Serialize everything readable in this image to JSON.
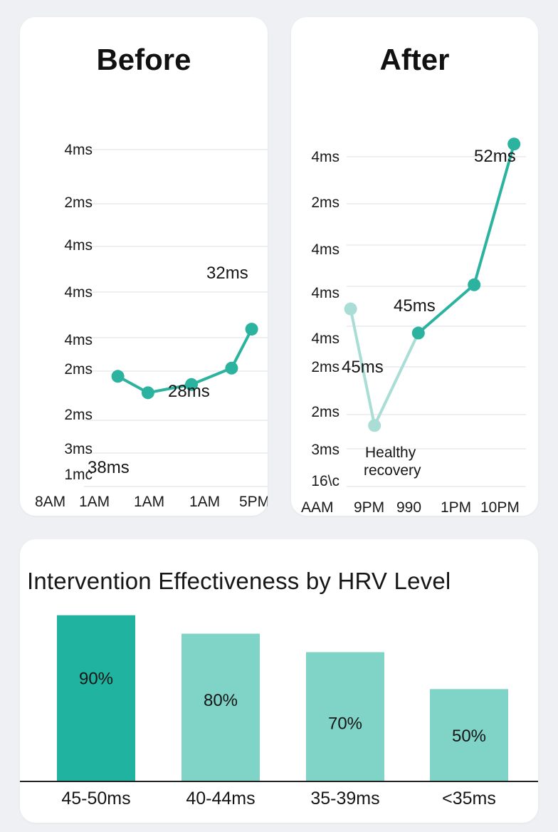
{
  "colors": {
    "line": "#2bb3a0",
    "line_light": "#a9ddd5",
    "grid": "#e2e5ea",
    "bar_dark": "#1fb3a0",
    "bar_light": "#7fd3c7",
    "baseline": "#222222"
  },
  "chart_data": [
    {
      "type": "line",
      "title": "Before",
      "y_tick_labels": [
        "4ms",
        "2ms",
        "4ms",
        "4ms",
        "4ms",
        "2ms",
        "2ms",
        "3ms",
        "1mc"
      ],
      "x_tick_labels": [
        "8AM",
        "1AM",
        "1AM",
        "1AM",
        "5PM"
      ],
      "series": [
        {
          "name": "Before",
          "points": [
            {
              "x": 0.8,
              "y": 2.7
            },
            {
              "x": 1.7,
              "y": 1.9
            },
            {
              "x": 3.0,
              "y": 2.3
            },
            {
              "x": 4.2,
              "y": 3.1
            },
            {
              "x": 4.8,
              "y": 5.0
            }
          ]
        }
      ],
      "annotations": [
        "38ms",
        "28ms",
        "32ms"
      ],
      "xlim": [
        0,
        5
      ],
      "ylim": [
        0,
        9
      ]
    },
    {
      "type": "line",
      "title": "After",
      "y_tick_labels": [
        "4ms",
        "2ms",
        "4ms",
        "4ms",
        "4ms",
        "2ms",
        "2ms",
        "3ms",
        "16\\c"
      ],
      "x_tick_labels": [
        "AAM",
        "9PM",
        "990",
        "1PM",
        "10PM"
      ],
      "series": [
        {
          "name": "Healthy recovery",
          "points": [
            {
              "x": 0.6,
              "y": 4.4
            },
            {
              "x": 1.2,
              "y": 1.5
            },
            {
              "x": 2.3,
              "y": 3.8
            },
            {
              "x": 3.7,
              "y": 5.0
            },
            {
              "x": 4.7,
              "y": 8.5
            }
          ]
        }
      ],
      "annotations": [
        "52ms",
        "45ms",
        "45ms",
        "Healthy",
        "recovery"
      ],
      "xlim": [
        0,
        5
      ],
      "ylim": [
        0,
        9
      ]
    },
    {
      "type": "bar",
      "title": "Intervention Effectiveness by HRV Level",
      "categories": [
        "45-50ms",
        "40-44ms",
        "35-39ms",
        "<35ms"
      ],
      "values": [
        90,
        80,
        70,
        50
      ],
      "value_labels": [
        "90%",
        "80%",
        "70%",
        "50%"
      ],
      "ylim": [
        0,
        100
      ]
    }
  ]
}
